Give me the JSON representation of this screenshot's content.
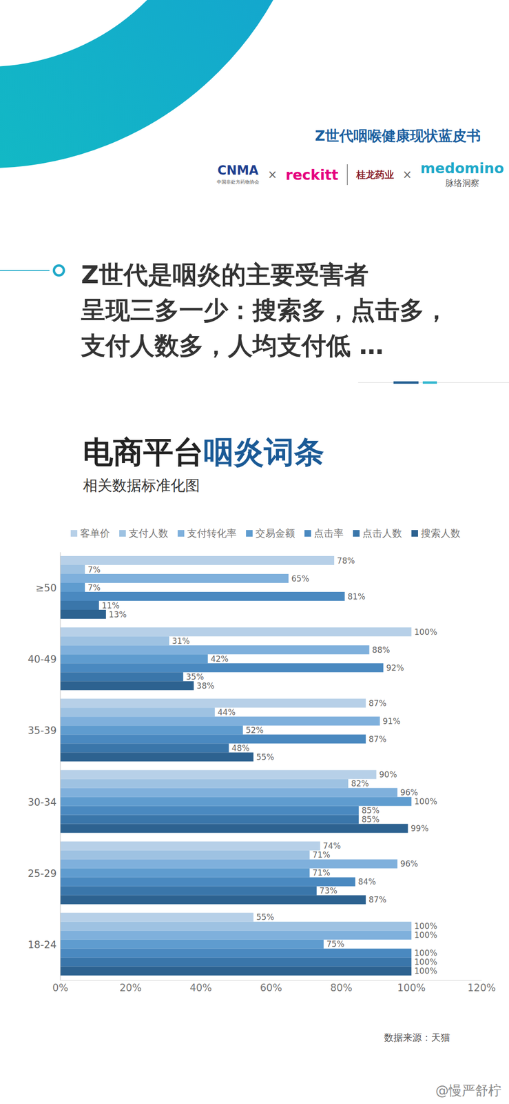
{
  "header": {
    "report_title": "Z世代咽喉健康现状蓝皮书",
    "separator": "×",
    "logos": [
      {
        "name": "CNMA",
        "caption": "中国非处方药物协会"
      },
      {
        "name": "reckitt"
      },
      {
        "name": "桂龙药业"
      },
      {
        "name": "medomino",
        "caption": "脉络洞察"
      }
    ]
  },
  "headline": [
    "Z世代是咽炎的主要受害者",
    "呈现三多一少：搜索多，点击多，",
    "支付人数多，人均支付低 …"
  ],
  "watermark": "@慢严舒柠",
  "chart_data": {
    "type": "bar",
    "orientation": "horizontal",
    "title": "电商平台咽炎词条",
    "subtitle": "相关数据标准化图",
    "source": "数据来源：天猫",
    "categories": [
      "≥50",
      "40-49",
      "35-39",
      "30-34",
      "25-29",
      "18-24"
    ],
    "series": [
      {
        "name": "客单价",
        "color": "#b7d0e8",
        "values": [
          78,
          100,
          87,
          90,
          74,
          55
        ],
        "value_labels": [
          "78%",
          "100%",
          "87%",
          "90%",
          "74%",
          "55%"
        ]
      },
      {
        "name": "支付人数",
        "color": "#9ec2e2",
        "values": [
          7,
          31,
          44,
          82,
          71,
          100
        ],
        "value_labels": [
          "7%",
          "31%",
          "44%",
          "82%",
          "71%",
          "100%"
        ]
      },
      {
        "name": "支付转化率",
        "color": "#7fb0dc",
        "values": [
          65,
          88,
          91,
          96,
          96,
          100
        ],
        "value_labels": [
          "65%",
          "88%",
          "91%",
          "96%",
          "96%",
          "100%"
        ]
      },
      {
        "name": "交易金额",
        "color": "#5f9ccf",
        "values": [
          7,
          42,
          52,
          100,
          71,
          75
        ],
        "value_labels": [
          "7%",
          "42%",
          "52%",
          "100%",
          "71%",
          "75%"
        ]
      },
      {
        "name": "点击率",
        "color": "#4a89c0",
        "values": [
          81,
          92,
          87,
          85,
          84,
          100
        ],
        "value_labels": [
          "81%",
          "92%",
          "87%",
          "85%",
          "84%",
          "100%"
        ]
      },
      {
        "name": "点击人数",
        "color": "#3a76aa",
        "values": [
          11,
          35,
          48,
          85,
          73,
          100
        ],
        "value_labels": [
          "11%",
          "35%",
          "48%",
          "85%",
          "73%",
          "100%"
        ]
      },
      {
        "name": "搜索人数",
        "color": "#2d6290",
        "values": [
          13,
          38,
          55,
          99,
          87,
          100
        ],
        "value_labels": [
          "13%",
          "38%",
          "55%",
          "99%",
          "87%",
          "100%"
        ]
      }
    ],
    "xlim": [
      0,
      120
    ],
    "xticks": [
      {
        "value": 0,
        "label": "0%"
      },
      {
        "value": 20,
        "label": "20%"
      },
      {
        "value": 40,
        "label": "40%"
      },
      {
        "value": 60,
        "label": "60%"
      },
      {
        "value": 80,
        "label": "80%"
      },
      {
        "value": 100,
        "label": "100%"
      },
      {
        "value": 120,
        "label": "120%"
      }
    ],
    "grid": false,
    "legend": "top",
    "data_labels": true
  }
}
